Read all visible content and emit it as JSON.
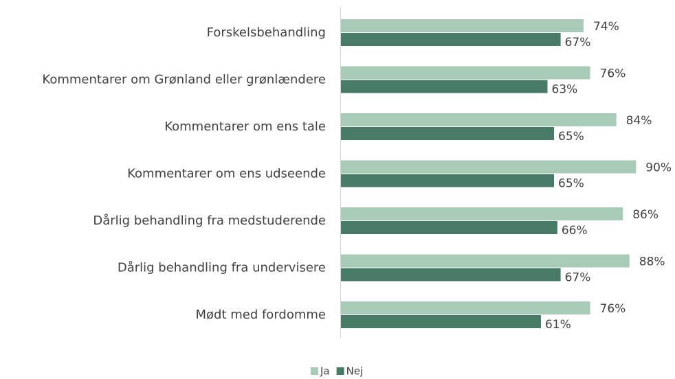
{
  "chart_data": {
    "type": "bar",
    "orientation": "horizontal",
    "categories": [
      "Forskelsbehandling",
      "Kommentarer om Grønland eller grønlændere",
      "Kommentarer om ens tale",
      "Kommentarer om ens udseende",
      "Dårlig behandling fra medstuderende",
      "Dårlig behandling fra undervisere",
      "Mødt med fordomme"
    ],
    "series": [
      {
        "name": "Ja",
        "color": "#a8cbb7",
        "values": [
          74,
          76,
          84,
          90,
          86,
          88,
          76
        ],
        "value_labels": [
          "74%",
          "76%",
          "84%",
          "90%",
          "86%",
          "88%",
          "76%"
        ]
      },
      {
        "name": "Nej",
        "color": "#477b65",
        "values": [
          67,
          63,
          65,
          65,
          66,
          67,
          61
        ],
        "value_labels": [
          "67%",
          "63%",
          "65%",
          "65%",
          "66%",
          "67%",
          "61%"
        ]
      }
    ],
    "legend": "bottom"
  }
}
